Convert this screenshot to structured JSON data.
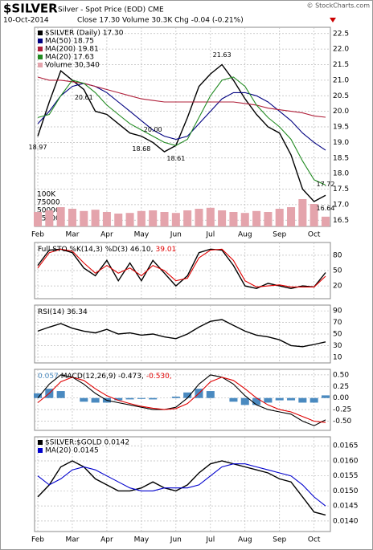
{
  "header": {
    "symbol": "$SILVER",
    "name": "Silver - Spot Price (EOD) CME",
    "date": "10-Oct-2014",
    "quote": "Close 17.30 Volume 30.3K Chg -0.04 (-0.21%)",
    "credit": "© StockCharts.com"
  },
  "chart_data": [
    {
      "type": "line",
      "legend": "stacked",
      "categories": [
        "Feb",
        null,
        null,
        "Mar",
        null,
        null,
        "Apr",
        null,
        null,
        "May",
        null,
        null,
        "Jun",
        null,
        null,
        "Jul",
        null,
        null,
        "Aug",
        null,
        null,
        "Sep",
        null,
        null,
        "Oct",
        null
      ],
      "ylim": [
        16.3,
        22.7
      ],
      "yticks": [
        16.5,
        {
          "value": 17,
          "label": "17.0"
        },
        17.5,
        {
          "value": 18,
          "label": "18.0"
        },
        18.5,
        {
          "value": 19,
          "label": "19.0"
        },
        19.5,
        {
          "value": 20,
          "label": "20.0"
        },
        20.5,
        {
          "value": 21,
          "label": "21.0"
        },
        21.5,
        {
          "value": 22,
          "label": "22.0"
        },
        22.5
      ],
      "y2lim": [
        0,
        620000
      ],
      "y2ticks": [
        25000,
        50000,
        75000,
        {
          "value": 100000,
          "label": "100K"
        }
      ],
      "grid": true,
      "annotations": [
        "18.97",
        "20.61",
        "20.00",
        "18.68",
        "18.61",
        "21.63",
        "17.72",
        "16.64"
      ],
      "series": [
        {
          "name": "$SILVER (Daily) 17.30",
          "color": "#000000",
          "values": [
            19.2,
            20.3,
            21.3,
            21.0,
            20.7,
            20.0,
            19.9,
            19.6,
            19.3,
            19.2,
            19.0,
            18.7,
            18.9,
            19.8,
            20.8,
            21.2,
            21.5,
            21.0,
            20.4,
            19.9,
            19.5,
            19.3,
            18.6,
            17.5,
            17.1,
            17.3
          ]
        },
        {
          "name": "MA(50) 18.75",
          "color": "#000080",
          "values": [
            19.6,
            20.0,
            20.5,
            20.8,
            20.9,
            20.8,
            20.6,
            20.3,
            20.0,
            19.7,
            19.4,
            19.2,
            19.1,
            19.2,
            19.6,
            20.0,
            20.4,
            20.6,
            20.6,
            20.5,
            20.3,
            20.0,
            19.7,
            19.3,
            19.0,
            18.75
          ]
        },
        {
          "name": "MA(200) 19.81",
          "color": "#b0203a",
          "values": [
            21.1,
            21.0,
            21.0,
            20.95,
            20.9,
            20.8,
            20.7,
            20.6,
            20.5,
            20.4,
            20.35,
            20.3,
            20.3,
            20.3,
            20.3,
            20.3,
            20.3,
            20.3,
            20.25,
            20.2,
            20.1,
            20.05,
            20.0,
            19.95,
            19.85,
            19.81
          ]
        },
        {
          "name": "MA(20) 17.63",
          "color": "#228b22",
          "values": [
            19.8,
            19.9,
            20.5,
            21.0,
            20.9,
            20.6,
            20.2,
            19.9,
            19.6,
            19.4,
            19.2,
            19.0,
            18.9,
            19.1,
            19.8,
            20.5,
            21.0,
            21.1,
            20.8,
            20.2,
            19.8,
            19.5,
            19.1,
            18.4,
            17.8,
            17.63
          ]
        },
        {
          "name": "Volume 30,340",
          "color": "#e4a4ac",
          "type": "bar",
          "axis": "y2",
          "values": [
            45000,
            50000,
            60000,
            55000,
            48000,
            52000,
            45000,
            40000,
            42000,
            48000,
            50000,
            45000,
            42000,
            50000,
            55000,
            58000,
            50000,
            45000,
            42000,
            48000,
            45000,
            55000,
            60000,
            85000,
            70000,
            30340
          ]
        }
      ]
    },
    {
      "type": "line",
      "legend": "inline",
      "ylim": [
        -5,
        105
      ],
      "yticks": [
        20,
        50,
        80
      ],
      "grid": true,
      "series": [
        {
          "name": "Full STO %K(14,3) %D(3) 46.10,",
          "color": "#000000",
          "values": [
            60,
            90,
            92,
            85,
            55,
            40,
            70,
            30,
            65,
            30,
            70,
            45,
            20,
            40,
            85,
            92,
            90,
            60,
            20,
            15,
            25,
            20,
            15,
            20,
            18,
            46.1
          ]
        },
        {
          "name": "39.01",
          "color": "#e00000",
          "values": [
            55,
            85,
            92,
            88,
            65,
            45,
            60,
            45,
            55,
            40,
            60,
            50,
            30,
            35,
            75,
            90,
            92,
            70,
            30,
            18,
            20,
            22,
            18,
            18,
            18,
            39.01
          ]
        }
      ]
    },
    {
      "type": "line",
      "legend": "inline",
      "ylim": [
        0,
        100
      ],
      "yticks": [
        10,
        30,
        50,
        70,
        90
      ],
      "grid": true,
      "series": [
        {
          "name": "RSI(14) 36.34",
          "color": "#000000",
          "values": [
            55,
            62,
            68,
            60,
            55,
            52,
            58,
            50,
            52,
            48,
            50,
            45,
            42,
            50,
            62,
            72,
            75,
            65,
            55,
            48,
            45,
            40,
            30,
            28,
            32,
            36.34
          ]
        }
      ]
    },
    {
      "type": "line",
      "legend": "inline",
      "ylim": [
        -0.7,
        0.62
      ],
      "yticks": [
        {
          "value": -0.5,
          "label": "-0.50"
        },
        {
          "value": -0.25,
          "label": "-0.25"
        },
        {
          "value": 0,
          "label": "0.00"
        },
        {
          "value": 0.25,
          "label": "0.25"
        },
        {
          "value": 0.5,
          "label": "0.50"
        }
      ],
      "grid": true,
      "series": [
        {
          "name": "0.057",
          "color": "#4a8ac0",
          "type": "bar",
          "values": [
            0.1,
            0.2,
            0.15,
            0.0,
            -0.08,
            -0.1,
            -0.1,
            -0.05,
            -0.03,
            -0.02,
            -0.03,
            0,
            0.03,
            0.12,
            0.2,
            0.15,
            0,
            -0.08,
            -0.15,
            -0.15,
            -0.1,
            -0.05,
            -0.05,
            -0.1,
            -0.1,
            0.057
          ]
        },
        {
          "name": "MACD(12,26,9) -0.473,",
          "color": "#000000",
          "values": [
            0.0,
            0.3,
            0.5,
            0.45,
            0.3,
            0.1,
            -0.05,
            -0.1,
            -0.15,
            -0.2,
            -0.25,
            -0.25,
            -0.2,
            0.0,
            0.3,
            0.5,
            0.45,
            0.3,
            0.05,
            -0.15,
            -0.25,
            -0.3,
            -0.35,
            -0.5,
            -0.6,
            -0.473
          ]
        },
        {
          "name": "-0.530,",
          "color": "#e00000",
          "values": [
            -0.1,
            0.1,
            0.35,
            0.45,
            0.38,
            0.2,
            0.05,
            -0.05,
            -0.12,
            -0.18,
            -0.22,
            -0.25,
            -0.23,
            -0.12,
            0.1,
            0.35,
            0.45,
            0.38,
            0.2,
            0.0,
            -0.15,
            -0.25,
            -0.3,
            -0.4,
            -0.5,
            -0.53
          ]
        }
      ]
    },
    {
      "type": "line",
      "legend": "stacked",
      "categories": [
        "Feb",
        null,
        null,
        "Mar",
        null,
        null,
        "Apr",
        null,
        null,
        "May",
        null,
        null,
        "Jun",
        null,
        null,
        "Jul",
        null,
        null,
        "Aug",
        null,
        null,
        "Sep",
        null,
        null,
        "Oct",
        null
      ],
      "ylim": [
        0.01365,
        0.0168
      ],
      "yticks": [
        {
          "value": 0.014,
          "label": "0.0140"
        },
        0.0145,
        {
          "value": 0.015,
          "label": "0.0150"
        },
        0.0155,
        {
          "value": 0.016,
          "label": "0.0160"
        },
        0.0165
      ],
      "grid": true,
      "series": [
        {
          "name": "$SILVER:$GOLD 0.0142",
          "color": "#000000",
          "values": [
            0.0148,
            0.0152,
            0.0158,
            0.016,
            0.0158,
            0.0154,
            0.0152,
            0.015,
            0.015,
            0.0151,
            0.0153,
            0.0151,
            0.015,
            0.0152,
            0.0156,
            0.0159,
            0.016,
            0.0159,
            0.0158,
            0.0157,
            0.0156,
            0.0154,
            0.0153,
            0.0148,
            0.0143,
            0.0142
          ]
        },
        {
          "name": "MA(20) 0.0145",
          "color": "#0000cd",
          "values": [
            0.0155,
            0.0152,
            0.0154,
            0.0157,
            0.0158,
            0.0157,
            0.0155,
            0.0153,
            0.0151,
            0.015,
            0.015,
            0.0151,
            0.0151,
            0.0151,
            0.0152,
            0.0155,
            0.0158,
            0.0159,
            0.0159,
            0.0158,
            0.0157,
            0.0156,
            0.0155,
            0.0152,
            0.0148,
            0.0145
          ]
        }
      ]
    }
  ]
}
